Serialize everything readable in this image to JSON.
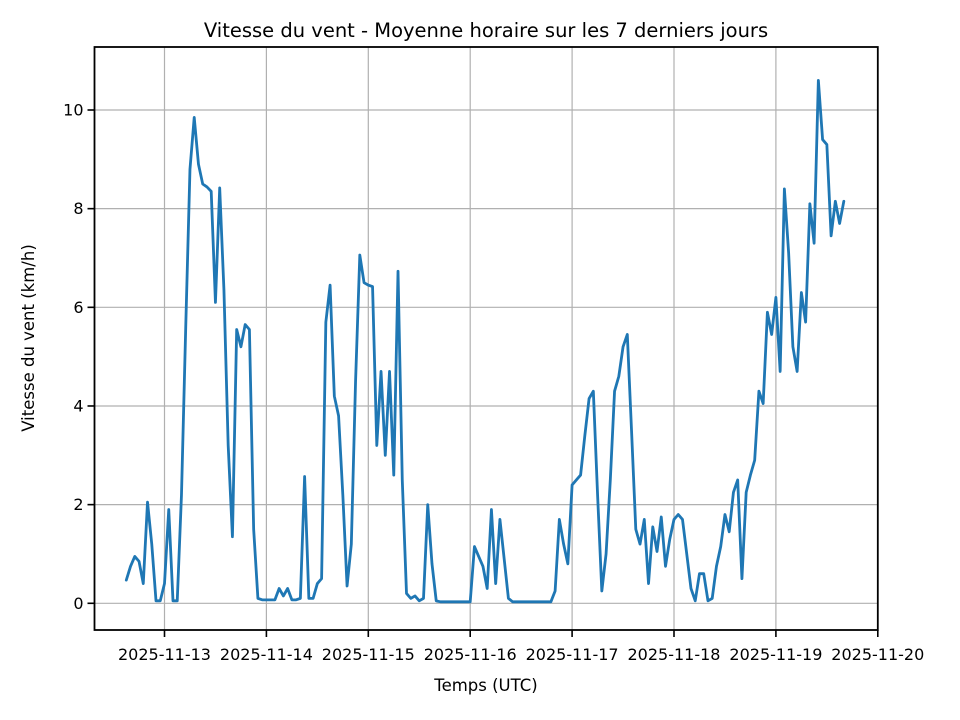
{
  "chart_data": {
    "type": "line",
    "title": "Vitesse du vent - Moyenne horaire sur les 7 derniers jours",
    "xlabel": "Temps (UTC)",
    "ylabel": "Vitesse du vent (km/h)",
    "x_tick_labels": [
      "2025-11-13",
      "2025-11-14",
      "2025-11-15",
      "2025-11-16",
      "2025-11-17",
      "2025-11-18",
      "2025-11-19",
      "2025-11-20"
    ],
    "y_ticks": [
      0,
      2,
      4,
      6,
      8,
      10
    ],
    "ylim": [
      -0.55,
      11.3
    ],
    "xlim_days_from_first_tick": [
      -0.69,
      7.0
    ],
    "grid": true,
    "legend": "none",
    "line_color": "#1f77b4",
    "grid_color": "#b0b0b0",
    "frame_color": "#000000",
    "series": [
      {
        "name": "Vitesse du vent (km/h)",
        "start_utc": "2025-11-12 15:00",
        "step_hours": 1,
        "values": [
          0.47,
          0.75,
          0.95,
          0.85,
          0.4,
          2.05,
          1.2,
          0.05,
          0.05,
          0.4,
          1.9,
          0.05,
          0.05,
          2.2,
          5.6,
          8.8,
          9.85,
          8.9,
          8.5,
          8.44,
          8.35,
          6.1,
          8.42,
          6.35,
          3.2,
          1.35,
          5.55,
          5.2,
          5.65,
          5.55,
          1.5,
          0.1,
          0.07,
          0.07,
          0.07,
          0.07,
          0.3,
          0.15,
          0.3,
          0.07,
          0.07,
          0.1,
          2.57,
          0.1,
          0.1,
          0.4,
          0.5,
          5.7,
          6.45,
          4.2,
          3.8,
          2.2,
          0.35,
          1.2,
          4.5,
          7.06,
          6.5,
          6.45,
          6.42,
          3.2,
          4.7,
          3.0,
          4.7,
          2.6,
          6.73,
          2.5,
          0.2,
          0.1,
          0.15,
          0.05,
          0.1,
          2.0,
          0.8,
          0.05,
          0.03,
          0.03,
          0.03,
          0.03,
          0.03,
          0.03,
          0.03,
          0.03,
          1.15,
          0.95,
          0.75,
          0.3,
          1.9,
          0.4,
          1.7,
          0.9,
          0.1,
          0.03,
          0.03,
          0.03,
          0.03,
          0.03,
          0.03,
          0.03,
          0.03,
          0.03,
          0.03,
          0.25,
          1.7,
          1.2,
          0.8,
          2.4,
          2.5,
          2.6,
          3.4,
          4.15,
          4.3,
          2.2,
          0.25,
          1.0,
          2.5,
          4.3,
          4.6,
          5.2,
          5.45,
          3.5,
          1.5,
          1.2,
          1.7,
          0.4,
          1.55,
          1.05,
          1.75,
          0.75,
          1.3,
          1.7,
          1.8,
          1.7,
          1.0,
          0.3,
          0.05,
          0.6,
          0.6,
          0.05,
          0.1,
          0.75,
          1.15,
          1.8,
          1.45,
          2.25,
          2.5,
          0.5,
          2.25,
          2.6,
          2.9,
          4.3,
          4.05,
          5.9,
          5.45,
          6.2,
          4.7,
          8.4,
          7.1,
          5.2,
          4.7,
          6.3,
          5.7,
          8.1,
          7.3,
          10.6,
          9.4,
          9.3,
          7.45,
          8.15,
          7.7,
          8.15
        ]
      }
    ]
  }
}
